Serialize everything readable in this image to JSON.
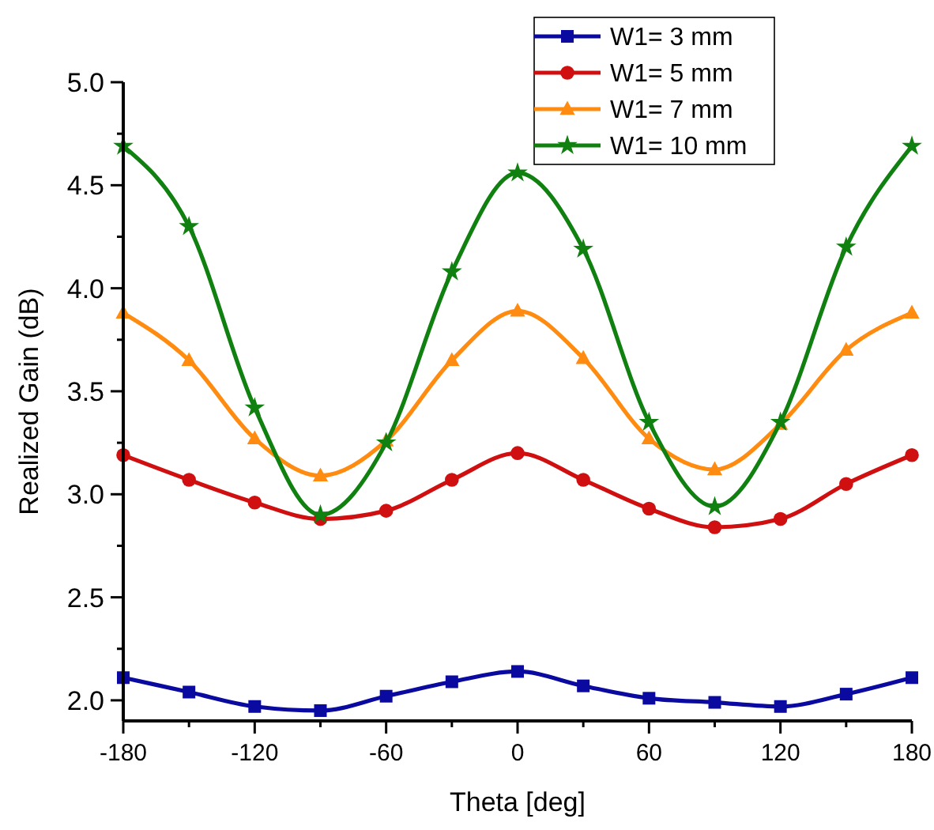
{
  "chart_data": {
    "type": "line",
    "xlabel": "Theta [deg]",
    "ylabel": "Realized Gain (dB)",
    "x": [
      -180,
      -150,
      -120,
      -90,
      -60,
      -30,
      0,
      30,
      60,
      90,
      120,
      150,
      180
    ],
    "xlim": [
      -180,
      180
    ],
    "xticks": [
      -180,
      {
        "value": -150,
        "label": null
      },
      -120,
      {
        "value": -90,
        "label": null
      },
      -60,
      {
        "value": -30,
        "label": null
      },
      0,
      {
        "value": 30,
        "label": null
      },
      60,
      {
        "value": 90,
        "label": null
      },
      120,
      {
        "value": 150,
        "label": null
      },
      180
    ],
    "ylim": [
      1.9,
      5.0
    ],
    "yticks": [
      {
        "value": 2,
        "label": "2.0"
      },
      {
        "value": 2.25,
        "label": null
      },
      2.5,
      {
        "value": 2.75,
        "label": null
      },
      {
        "value": 3,
        "label": "3.0"
      },
      {
        "value": 3.25,
        "label": null
      },
      3.5,
      {
        "value": 3.75,
        "label": null
      },
      {
        "value": 4,
        "label": "4.0"
      },
      {
        "value": 4.25,
        "label": null
      },
      4.5,
      {
        "value": 4.75,
        "label": null
      },
      {
        "value": 5,
        "label": "5.0"
      }
    ],
    "grid": false,
    "legend": "top right",
    "series": [
      {
        "name": "W1= 3 mm",
        "color": "#0a0aa0",
        "marker": "square",
        "values": [
          2.11,
          2.04,
          1.97,
          1.95,
          2.02,
          2.09,
          2.14,
          2.07,
          2.01,
          1.99,
          1.97,
          2.03,
          2.11
        ]
      },
      {
        "name": "W1= 5 mm",
        "color": "#d01010",
        "marker": "circle",
        "values": [
          3.19,
          3.07,
          2.96,
          2.88,
          2.92,
          3.07,
          3.2,
          3.07,
          2.93,
          2.84,
          2.88,
          3.05,
          3.19
        ]
      },
      {
        "name": "W1= 7 mm",
        "color": "#ff8c10",
        "marker": "triangle",
        "values": [
          3.88,
          3.65,
          3.27,
          3.09,
          3.26,
          3.65,
          3.89,
          3.66,
          3.27,
          3.12,
          3.34,
          3.7,
          3.88
        ]
      },
      {
        "name": "W1= 10 mm",
        "color": "#108010",
        "marker": "star",
        "values": [
          4.69,
          4.3,
          3.42,
          2.9,
          3.25,
          4.08,
          4.56,
          4.19,
          3.35,
          2.94,
          3.35,
          4.2,
          4.69
        ]
      }
    ]
  }
}
